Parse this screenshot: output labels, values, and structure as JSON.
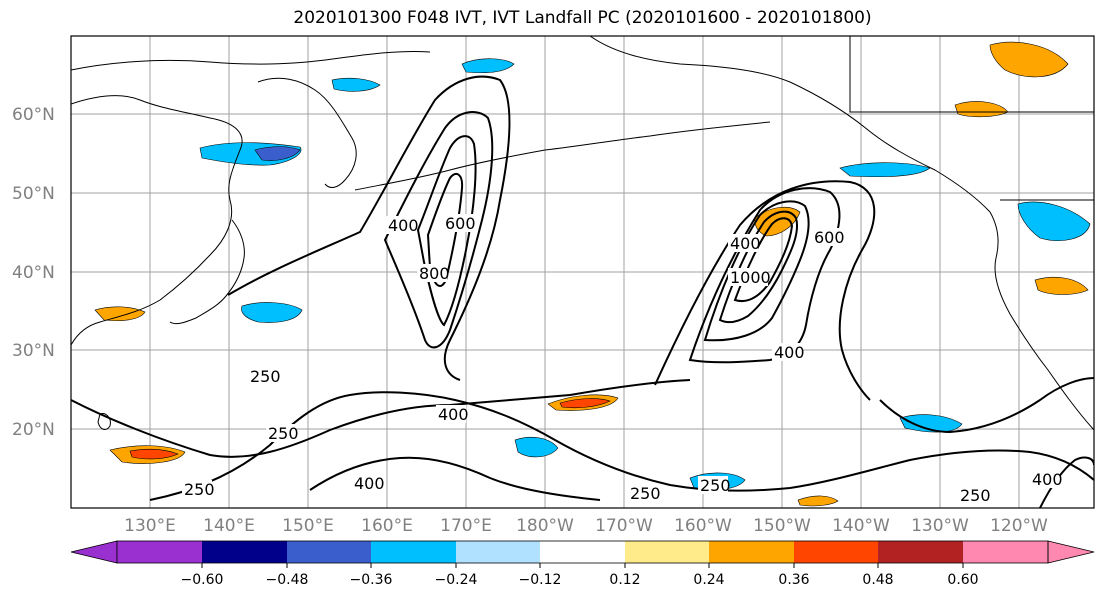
{
  "title": "2020101300 F048 IVT, IVT Landfall PC (2020101600 - 2020101800)",
  "lat_labels": [
    "60°N",
    "50°N",
    "40°N",
    "30°N",
    "20°N"
  ],
  "lon_labels": [
    "130°E",
    "140°E",
    "150°E",
    "160°E",
    "170°E",
    "180°W",
    "170°W",
    "160°W",
    "150°W",
    "140°W",
    "130°W",
    "120°W"
  ],
  "contour_labels": [
    "400",
    "600",
    "800",
    "400",
    "1000",
    "600",
    "400",
    "250",
    "250",
    "400",
    "250",
    "400",
    "250",
    "250",
    "250",
    "400"
  ],
  "colorbar": {
    "colors": [
      "#9b30d0",
      "#00008b",
      "#3a5fcd",
      "#00bfff",
      "#b0e2ff",
      "#ffffff",
      "#ffeb8a",
      "#ffa500",
      "#ff4500",
      "#b22222",
      "#ff88b0"
    ],
    "ticks": [
      "−0.60",
      "−0.48",
      "−0.36",
      "−0.24",
      "−0.12",
      "0.12",
      "0.24",
      "0.36",
      "0.48",
      "0.60"
    ]
  },
  "colors": {
    "gridline": "#a0a0a0",
    "coastline": "#000000",
    "contour": "#000000"
  }
}
